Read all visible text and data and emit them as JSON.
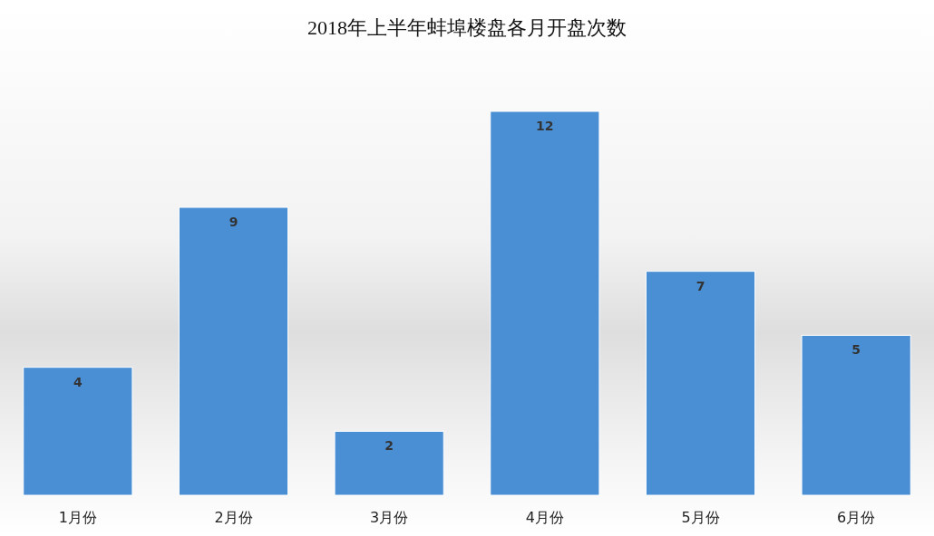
{
  "chart_data": {
    "type": "bar",
    "title": "2018年上半年蚌埠楼盘各月开盘次数",
    "categories": [
      "1月份",
      "2月份",
      "3月份",
      "4月份",
      "5月份",
      "6月份"
    ],
    "values": [
      4,
      9,
      2,
      12,
      7,
      5
    ],
    "color": "#4a8fd4",
    "data_labels": true
  }
}
